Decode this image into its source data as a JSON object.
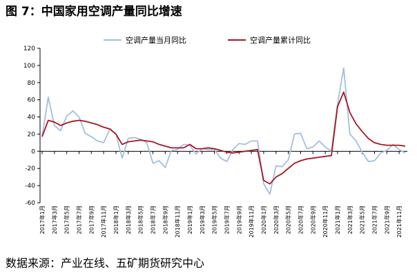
{
  "title": "图 7：中国家用空调产量同比增速",
  "source": "数据来源：产业在线、五矿期货研究中心",
  "chart_data": {
    "type": "line",
    "title": "",
    "xlabel": "",
    "ylabel": "",
    "ylim": [
      -60,
      120
    ],
    "y_ticks": [
      -60,
      -40,
      -20,
      0,
      20,
      40,
      60,
      80,
      100,
      120
    ],
    "grid": false,
    "legend_position": "top-center",
    "x_tick_labels": [
      "2017年1月",
      "2017年3月",
      "2017年5月",
      "2017年7月",
      "2017年9月",
      "2017年11月",
      "2018年1月",
      "2018年3月",
      "2018年5月",
      "2018年7月",
      "2018年9月",
      "2018年11月",
      "2019年1月",
      "2019年3月",
      "2019年5月",
      "2019年7月",
      "2019年9月",
      "2019年11月",
      "2020年1月",
      "2020年3月",
      "2020年5月",
      "2020年7月",
      "2020年9月",
      "2020年11月",
      "2021年1月",
      "2021年3月",
      "2021年5月",
      "2021年7月",
      "2021年9月",
      "2021年11月"
    ],
    "x": [
      "2017-01",
      "2017-02",
      "2017-03",
      "2017-04",
      "2017-05",
      "2017-06",
      "2017-07",
      "2017-08",
      "2017-09",
      "2017-10",
      "2017-11",
      "2017-12",
      "2018-01",
      "2018-02",
      "2018-03",
      "2018-04",
      "2018-05",
      "2018-06",
      "2018-07",
      "2018-08",
      "2018-09",
      "2018-10",
      "2018-11",
      "2018-12",
      "2019-01",
      "2019-02",
      "2019-03",
      "2019-04",
      "2019-05",
      "2019-06",
      "2019-07",
      "2019-08",
      "2019-09",
      "2019-10",
      "2019-11",
      "2019-12",
      "2020-01",
      "2020-02",
      "2020-03",
      "2020-04",
      "2020-05",
      "2020-06",
      "2020-07",
      "2020-08",
      "2020-09",
      "2020-10",
      "2020-11",
      "2020-12",
      "2021-01",
      "2021-02",
      "2021-03",
      "2021-04",
      "2021-05",
      "2021-06",
      "2021-07",
      "2021-08",
      "2021-09",
      "2021-10",
      "2021-11",
      "2021-12"
    ],
    "series": [
      {
        "name": "空调产量当月同比",
        "color": "#a3bfdc",
        "values": [
          17,
          63,
          30,
          24,
          41,
          47,
          40,
          21,
          17,
          12,
          10,
          26,
          20,
          -8,
          15,
          16,
          14,
          10,
          -14,
          -11,
          -19,
          1,
          2,
          8,
          7,
          -3,
          3,
          2,
          2,
          -8,
          -12,
          2,
          9,
          8,
          12,
          12,
          -38,
          -50,
          -17,
          -18,
          -10,
          20,
          21,
          3,
          5,
          12,
          5,
          0,
          55,
          97,
          20,
          12,
          -1,
          -12,
          -11,
          -2,
          1,
          8,
          2,
          -2
        ]
      },
      {
        "name": "空调产量累计同比",
        "color": "#a8141e",
        "values": [
          17,
          36,
          34,
          30,
          33,
          35,
          36,
          35,
          33,
          31,
          28,
          26,
          20,
          8,
          11,
          12,
          13,
          12,
          11,
          8,
          6,
          4,
          4,
          4,
          8,
          3,
          3,
          4,
          3,
          1,
          -1,
          -2,
          -1,
          0,
          1,
          2,
          -34,
          -38,
          -30,
          -26,
          -20,
          -14,
          -11,
          -9,
          -8,
          -7,
          -6,
          -5,
          52,
          69,
          45,
          32,
          23,
          15,
          10,
          8,
          7,
          7,
          7,
          6
        ]
      }
    ]
  }
}
